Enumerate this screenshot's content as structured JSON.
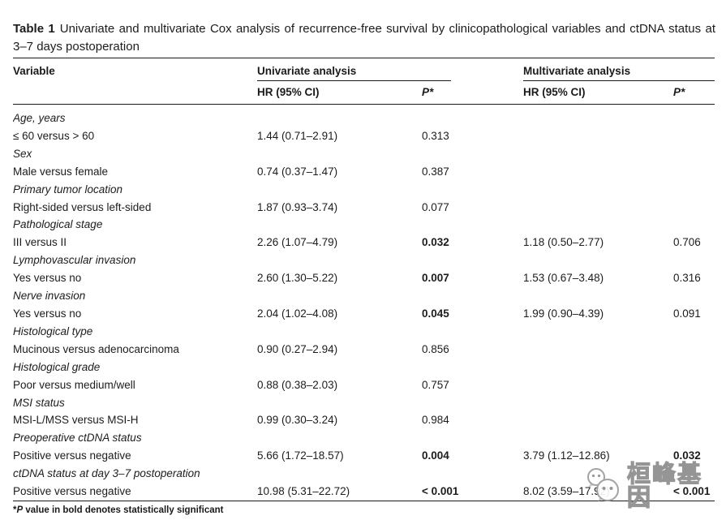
{
  "caption": {
    "label": "Table 1",
    "text": "Univariate and multivariate Cox analysis of recurrence-free survival by clinicopathological variables and ctDNA status at 3–7 days postoperation"
  },
  "table": {
    "header": {
      "variable": "Variable",
      "univariate_group": "Univariate analysis",
      "multivariate_group": "Multivariate analysis",
      "hr_label": "HR (95% CI)",
      "p_label": "P*"
    },
    "rows": [
      {
        "category": "Age, years"
      },
      {
        "label": "≤ 60 versus > 60",
        "uni_hr": "1.44 (0.71–2.91)",
        "uni_p": "0.313"
      },
      {
        "category": "Sex"
      },
      {
        "label": "Male versus female",
        "uni_hr": "0.74 (0.37–1.47)",
        "uni_p": "0.387"
      },
      {
        "category": "Primary tumor location"
      },
      {
        "label": "Right-sided versus left-sided",
        "uni_hr": "1.87 (0.93–3.74)",
        "uni_p": "0.077"
      },
      {
        "category": "Pathological stage"
      },
      {
        "label": "III versus II",
        "uni_hr": "2.26 (1.07–4.79)",
        "uni_p": "0.032",
        "uni_p_bold": true,
        "multi_hr": "1.18 (0.50–2.77)",
        "multi_p": "0.706"
      },
      {
        "category": "Lymphovascular invasion"
      },
      {
        "label": "Yes versus no",
        "uni_hr": "2.60 (1.30–5.22)",
        "uni_p": "0.007",
        "uni_p_bold": true,
        "multi_hr": "1.53 (0.67–3.48)",
        "multi_p": "0.316"
      },
      {
        "category": "Nerve invasion"
      },
      {
        "label": "Yes versus no",
        "uni_hr": "2.04 (1.02–4.08)",
        "uni_p": "0.045",
        "uni_p_bold": true,
        "multi_hr": "1.99 (0.90–4.39)",
        "multi_p": "0.091"
      },
      {
        "category": "Histological type"
      },
      {
        "label": "Mucinous versus adenocarcinoma",
        "uni_hr": "0.90 (0.27–2.94)",
        "uni_p": "0.856"
      },
      {
        "category": "Histological grade"
      },
      {
        "label": "Poor versus medium/well",
        "uni_hr": "0.88 (0.38–2.03)",
        "uni_p": "0.757"
      },
      {
        "category": "MSI status"
      },
      {
        "label": "MSI-L/MSS versus MSI-H",
        "uni_hr": "0.99 (0.30–3.24)",
        "uni_p": "0.984"
      },
      {
        "category": "Preoperative ctDNA status"
      },
      {
        "label": "Positive versus negative",
        "uni_hr": "5.66 (1.72–18.57)",
        "uni_p": "0.004",
        "uni_p_bold": true,
        "multi_hr": "3.79 (1.12–12.86)",
        "multi_p": "0.032",
        "multi_p_bold": true
      },
      {
        "category": "ctDNA status at day 3–7 postoperation"
      },
      {
        "label": "Positive versus negative",
        "uni_hr": "10.98 (5.31–22.72)",
        "uni_p": "< 0.001",
        "uni_p_bold": true,
        "multi_hr": "8.02 (3.59–17.92)",
        "multi_p": "< 0.001",
        "multi_p_bold": true
      }
    ]
  },
  "footnote": {
    "marker": "*",
    "p_symbol": "P",
    "text": " value in bold denotes statistically significant"
  },
  "watermark": {
    "icon": "wechat-logo-icon",
    "text": "桓峰基因"
  },
  "colors": {
    "text": "#1f1f1f",
    "rule": "#1a1a1a",
    "watermark_gray": "#8d8d8d"
  }
}
